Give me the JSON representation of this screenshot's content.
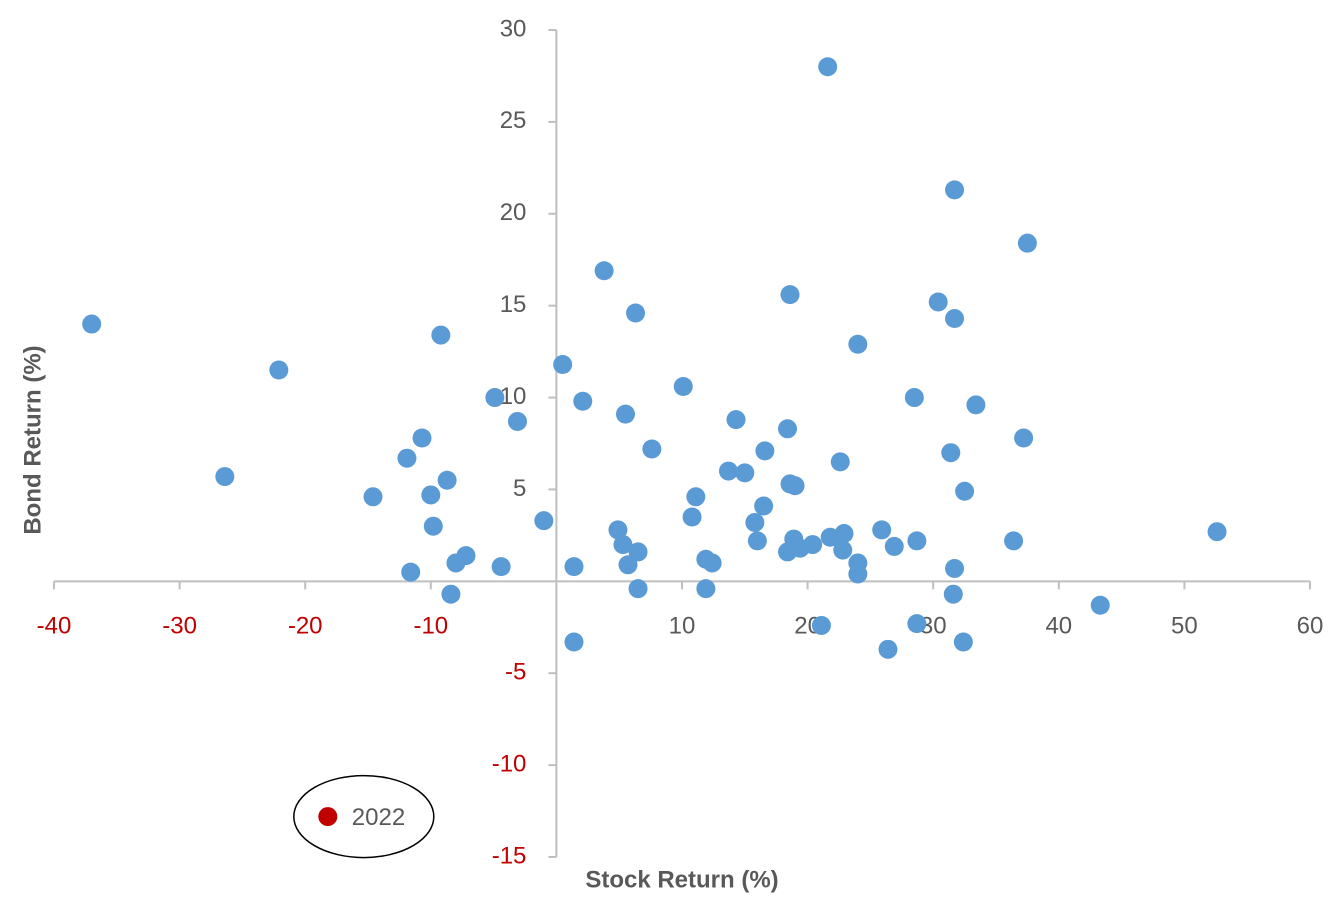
{
  "chart_data": {
    "type": "scatter",
    "x_label": "Stock Return (%)",
    "y_label": "Bond Return (%)",
    "xlim": [
      -40,
      60
    ],
    "xticks": [
      -40,
      -30,
      -20,
      -10,
      10,
      20,
      30,
      40,
      50,
      60
    ],
    "ylim": [
      -15,
      30
    ],
    "yticks": [
      -15,
      -10,
      -5,
      5,
      10,
      15,
      20,
      25,
      30
    ],
    "label_color": "#595959",
    "negative_label_color": "#c00000",
    "series": [
      {
        "color": "#5b9bd5",
        "x": [
          -37.0,
          -22.1,
          -26.4,
          -14.6,
          -11.9,
          -10.7,
          -9.2,
          -8.7,
          -10.0,
          -9.8,
          -7.2,
          -8.0,
          -11.6,
          -8.4,
          -4.9,
          -3.1,
          -4.4,
          -1.0,
          0.5,
          2.1,
          1.4,
          1.4,
          3.8,
          6.3,
          5.5,
          7.6,
          4.9,
          5.3,
          6.5,
          5.7,
          6.5,
          10.1,
          11.1,
          10.8,
          11.9,
          12.4,
          11.9,
          13.7,
          14.3,
          15.0,
          16.6,
          16.5,
          15.8,
          16.0,
          18.6,
          18.4,
          18.6,
          19.0,
          18.9,
          18.4,
          19.4,
          20.4,
          21.6,
          21.8,
          22.9,
          22.8,
          22.6,
          24.0,
          24.0,
          24.0,
          21.1,
          25.9,
          26.9,
          26.4,
          28.7,
          28.5,
          28.7,
          30.4,
          31.7,
          31.7,
          31.4,
          31.7,
          31.6,
          32.5,
          32.4,
          33.4,
          37.5,
          37.2,
          36.4,
          43.3,
          52.6
        ],
        "values": [
          14.0,
          11.5,
          5.7,
          4.6,
          6.7,
          7.8,
          13.4,
          5.5,
          4.7,
          3.0,
          1.4,
          1.0,
          0.5,
          -0.7,
          10.0,
          8.7,
          0.8,
          3.3,
          11.8,
          9.8,
          0.8,
          -3.3,
          16.9,
          14.6,
          9.1,
          7.2,
          2.8,
          2.0,
          1.6,
          0.9,
          -0.4,
          10.6,
          4.6,
          3.5,
          1.2,
          1.0,
          -0.4,
          6.0,
          8.8,
          5.9,
          7.1,
          4.1,
          3.2,
          2.2,
          15.6,
          8.3,
          5.3,
          5.2,
          2.3,
          1.6,
          1.8,
          2.0,
          28.0,
          2.4,
          2.6,
          1.7,
          6.5,
          12.9,
          1.0,
          0.4,
          -2.4,
          2.8,
          1.9,
          -3.7,
          2.2,
          10.0,
          -2.3,
          15.2,
          21.3,
          14.3,
          7.0,
          0.7,
          -0.7,
          4.9,
          -3.3,
          9.6,
          18.4,
          7.8,
          2.2,
          -1.3,
          2.7
        ]
      },
      {
        "name": "2022",
        "color": "#c00000",
        "x": [
          -18.2
        ],
        "values": [
          -12.8
        ]
      }
    ]
  }
}
